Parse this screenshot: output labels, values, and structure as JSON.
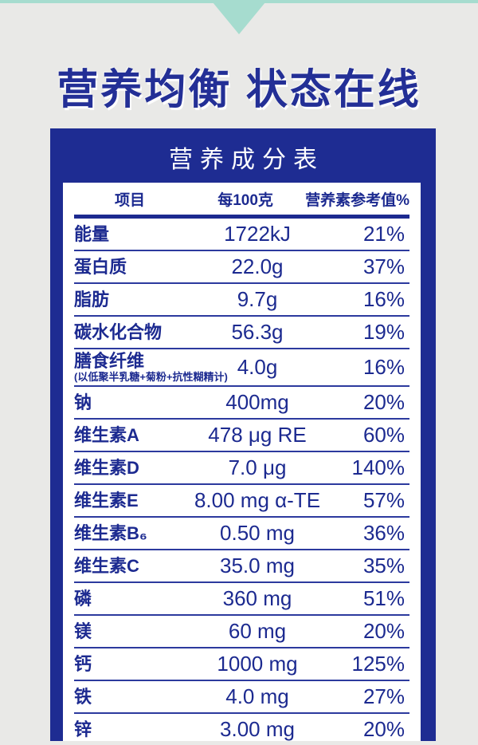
{
  "page": {
    "heading": "营养均衡 状态在线",
    "panel_title": "营养成分表"
  },
  "table": {
    "columns": [
      "项目",
      "每100克",
      "营养素参考值%"
    ],
    "rows": [
      {
        "item": "能量",
        "sub": "",
        "value": "1722kJ",
        "nrv": "21%"
      },
      {
        "item": "蛋白质",
        "sub": "",
        "value": "22.0g",
        "nrv": "37%"
      },
      {
        "item": "脂肪",
        "sub": "",
        "value": "9.7g",
        "nrv": "16%"
      },
      {
        "item": "碳水化合物",
        "sub": "",
        "value": "56.3g",
        "nrv": "19%"
      },
      {
        "item": "膳食纤维",
        "sub": "(以低聚半乳糖+菊粉+抗性糊精计)",
        "value": "4.0g",
        "nrv": "16%"
      },
      {
        "item": "钠",
        "sub": "",
        "value": "400mg",
        "nrv": "20%"
      },
      {
        "item": "维生素A",
        "sub": "",
        "value": "478 μg RE",
        "nrv": "60%"
      },
      {
        "item": "维生素D",
        "sub": "",
        "value": "7.0 μg",
        "nrv": "140%"
      },
      {
        "item": "维生素E",
        "sub": "",
        "value": "8.00 mg α-TE",
        "nrv": "57%"
      },
      {
        "item": "维生素B₆",
        "sub": "",
        "value": "0.50 mg",
        "nrv": "36%"
      },
      {
        "item": "维生素C",
        "sub": "",
        "value": "35.0 mg",
        "nrv": "35%"
      },
      {
        "item": "磷",
        "sub": "",
        "value": "360 mg",
        "nrv": "51%"
      },
      {
        "item": "镁",
        "sub": "",
        "value": "60 mg",
        "nrv": "20%"
      },
      {
        "item": "钙",
        "sub": "",
        "value": "1000 mg",
        "nrv": "125%"
      },
      {
        "item": "铁",
        "sub": "",
        "value": "4.0 mg",
        "nrv": "27%"
      },
      {
        "item": "锌",
        "sub": "",
        "value": "3.00 mg",
        "nrv": "20%"
      }
    ]
  },
  "colors": {
    "background": "#e9e9e7",
    "accent_teal": "#a6dccf",
    "panel_navy": "#1e2c92",
    "text_navy": "#1c2a90",
    "separator_blue": "#2c3a9e",
    "sheet_white": "#ffffff"
  }
}
